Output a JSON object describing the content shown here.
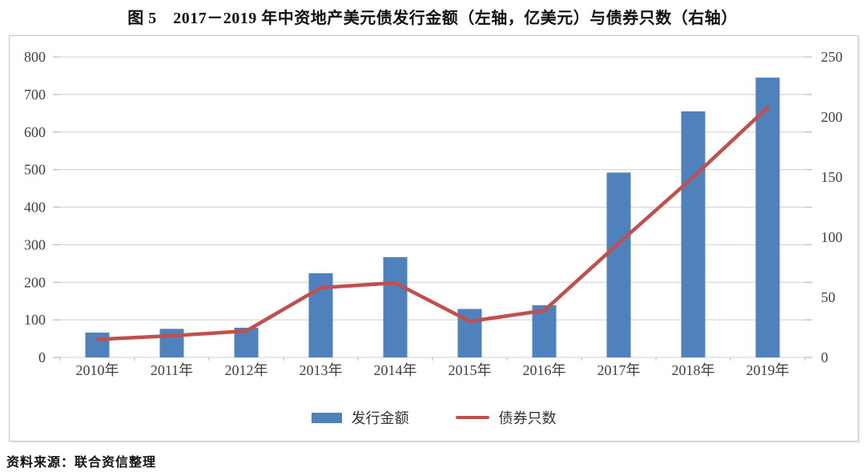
{
  "title": "图 5　2017－2019 年中资地产美元债发行金额（左轴，亿美元）与债券只数（右轴）",
  "source": "资料来源：联合资信整理",
  "legend": {
    "bar_label": "发行金额",
    "line_label": "债券只数"
  },
  "colors": {
    "bar": "#4F81BD",
    "line": "#C0504D",
    "grid": "#D9D9D9",
    "tick": "#BFBFBF",
    "axis_text": "#404040",
    "frame_border": "#C6C6C6"
  },
  "chart_data": {
    "type": "bar",
    "subtype": "bar+line combo, dual axis",
    "title": "图 5　2017－2019 年中资地产美元债发行金额（左轴，亿美元）与债券只数（右轴）",
    "categories": [
      "2010年",
      "2011年",
      "2012年",
      "2013年",
      "2014年",
      "2015年",
      "2016年",
      "2017年",
      "2018年",
      "2019年"
    ],
    "series": [
      {
        "name": "发行金额",
        "type": "bar",
        "axis": "left",
        "unit": "亿美元",
        "values": [
          66,
          76,
          79,
          224,
          267,
          129,
          139,
          492,
          655,
          745
        ]
      },
      {
        "name": "债券只数",
        "type": "line",
        "axis": "right",
        "unit": "只",
        "values": [
          15,
          18,
          22,
          58,
          62,
          30,
          39,
          95,
          150,
          208
        ]
      }
    ],
    "left_axis": {
      "min": 0,
      "max": 800,
      "step": 100
    },
    "right_axis": {
      "min": 0,
      "max": 250,
      "step": 50
    },
    "grid": true,
    "legend_position": "bottom-center"
  }
}
